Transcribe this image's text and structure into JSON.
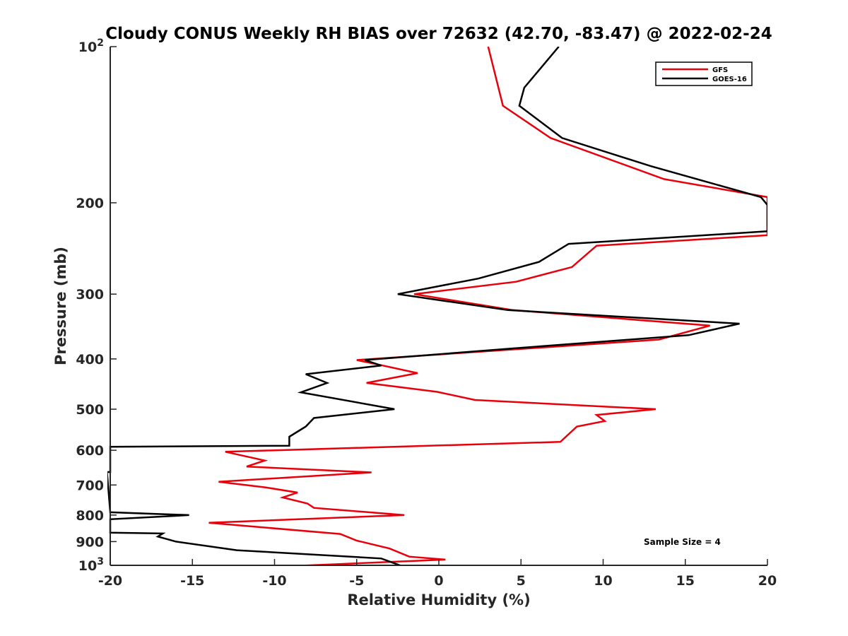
{
  "chart_data": {
    "type": "line",
    "title": "Cloudy CONUS Weekly RH BIAS over 72632 (42.70, -83.47) @ 2022-02-24",
    "xlabel": "Relative Humidity (%)",
    "ylabel": "Pressure (mb)",
    "xlim": [
      -20,
      20
    ],
    "ylim": [
      100,
      1000
    ],
    "y_scale": "log",
    "y_reversed": true,
    "grid": false,
    "legend_position": "top-right",
    "x_ticks": [
      "-20",
      "-15",
      "-10",
      "-5",
      "0",
      "5",
      "10",
      "15",
      "20"
    ],
    "y_ticks": [
      {
        "value": 100,
        "base": "10",
        "exp": "2"
      },
      {
        "value": 200,
        "label": "200"
      },
      {
        "value": 300,
        "label": "300"
      },
      {
        "value": 400,
        "label": "400"
      },
      {
        "value": 500,
        "label": "500"
      },
      {
        "value": 600,
        "label": "600"
      },
      {
        "value": 700,
        "label": "700"
      },
      {
        "value": 800,
        "label": "800"
      },
      {
        "value": 900,
        "label": "900"
      },
      {
        "value": 1000,
        "base": "10",
        "exp": "3"
      }
    ],
    "annotation": "Sample Size = 4",
    "series": [
      {
        "name": "GFS",
        "color": "#e8000b",
        "points": [
          [
            3.0,
            100
          ],
          [
            3.9,
            130
          ],
          [
            6.8,
            150
          ],
          [
            13.7,
            180
          ],
          [
            20.0,
            195
          ],
          [
            20.0,
            231
          ],
          [
            9.6,
            242
          ],
          [
            8.1,
            266
          ],
          [
            4.7,
            284
          ],
          [
            -1.5,
            300
          ],
          [
            4.5,
            322
          ],
          [
            16.5,
            345
          ],
          [
            13.4,
            367
          ],
          [
            -5.0,
            402
          ],
          [
            -3.4,
            412
          ],
          [
            -1.3,
            426
          ],
          [
            -4.4,
            445
          ],
          [
            -0.1,
            463
          ],
          [
            2.2,
            480
          ],
          [
            13.2,
            500
          ],
          [
            9.6,
            513
          ],
          [
            10.1,
            527
          ],
          [
            8.4,
            540
          ],
          [
            7.4,
            578
          ],
          [
            -13.0,
            604
          ],
          [
            -10.6,
            628
          ],
          [
            -11.7,
            645
          ],
          [
            -4.1,
            662
          ],
          [
            -13.4,
            690
          ],
          [
            -10.5,
            708
          ],
          [
            -8.6,
            724
          ],
          [
            -9.5,
            740
          ],
          [
            -8.0,
            760
          ],
          [
            -7.6,
            775
          ],
          [
            -2.1,
            800
          ],
          [
            -14.0,
            828
          ],
          [
            -6.0,
            870
          ],
          [
            -5.0,
            896
          ],
          [
            -3.0,
            928
          ],
          [
            -1.8,
            962
          ],
          [
            0.4,
            975
          ],
          [
            -8.5,
            1002
          ]
        ]
      },
      {
        "name": "GOES-16",
        "color": "#000000",
        "points": [
          [
            7.3,
            100
          ],
          [
            5.2,
            120
          ],
          [
            4.9,
            130
          ],
          [
            7.5,
            150
          ],
          [
            12.9,
            170
          ],
          [
            19.6,
            195
          ],
          [
            20.0,
            202
          ],
          [
            20.0,
            227
          ],
          [
            7.9,
            240
          ],
          [
            6.1,
            260
          ],
          [
            2.4,
            280
          ],
          [
            -2.5,
            300
          ],
          [
            4.2,
            322
          ],
          [
            18.3,
            342
          ],
          [
            15.2,
            360
          ],
          [
            4.4,
            382
          ],
          [
            -4.5,
            402
          ],
          [
            -3.5,
            412
          ],
          [
            -8.1,
            428
          ],
          [
            -6.8,
            445
          ],
          [
            -8.4,
            464
          ],
          [
            -2.7,
            500
          ],
          [
            -7.6,
            520
          ],
          [
            -8.1,
            540
          ],
          [
            -9.1,
            565
          ],
          [
            -9.1,
            588
          ],
          [
            -20.0,
            591
          ],
          [
            -20.0,
            661
          ],
          [
            -20.2,
            661
          ],
          [
            -20.0,
            790
          ],
          [
            -15.2,
            800
          ],
          [
            -20.0,
            815
          ],
          [
            -20.0,
            865
          ],
          [
            -16.8,
            868
          ],
          [
            -17.1,
            880
          ],
          [
            -16.0,
            900
          ],
          [
            -12.3,
            935
          ],
          [
            -3.5,
            970
          ],
          [
            -2.3,
            1002
          ]
        ]
      }
    ]
  }
}
